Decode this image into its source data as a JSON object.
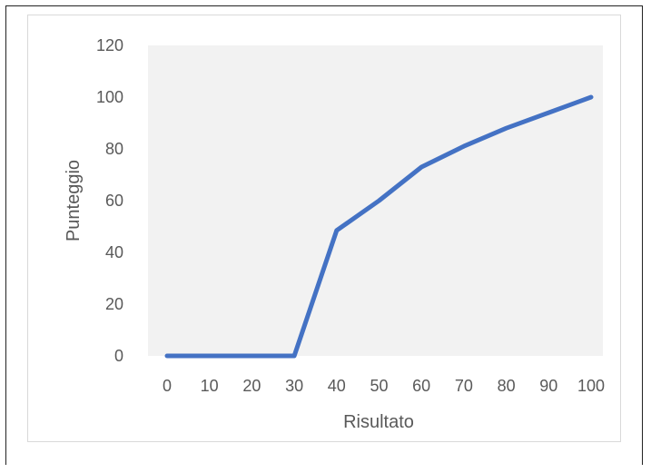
{
  "chart_data": {
    "type": "line",
    "title": "",
    "xlabel": "Risultato",
    "ylabel": "Punteggio",
    "x": [
      0,
      10,
      20,
      30,
      40,
      50,
      60,
      70,
      80,
      90,
      100
    ],
    "x_tick_labels": [
      "0",
      "10",
      "20",
      "30",
      "40",
      "50",
      "60",
      "70",
      "80",
      "90",
      "100"
    ],
    "y_tick_labels": [
      "0",
      "20",
      "40",
      "60",
      "80",
      "100",
      "120"
    ],
    "ylim": [
      0,
      120
    ],
    "series": [
      {
        "values": [
          0,
          0,
          0,
          0,
          48.5,
          60,
          73,
          81,
          88,
          94,
          100
        ]
      }
    ],
    "line_color": "#4472C4",
    "plot_background": "#f2f2f2",
    "grid": false,
    "legend": "none"
  }
}
